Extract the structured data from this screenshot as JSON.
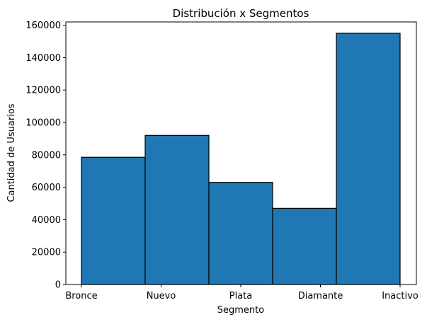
{
  "chart_data": {
    "type": "bar",
    "title": "Distribución x Segmentos",
    "xlabel": "Segmento",
    "ylabel": "Cantidad de Usuarios",
    "bar_color": "#1f77b4",
    "edge_color": "#000000",
    "x_ticks": [
      "Bronce",
      "Nuevo",
      "Plata",
      "Diamante",
      "Inactivo"
    ],
    "values": [
      78500,
      92000,
      63000,
      47000,
      155000
    ],
    "ylim": [
      0,
      162000
    ],
    "y_ticks": [
      0,
      20000,
      40000,
      60000,
      80000,
      100000,
      120000,
      140000,
      160000
    ],
    "grid": false
  }
}
